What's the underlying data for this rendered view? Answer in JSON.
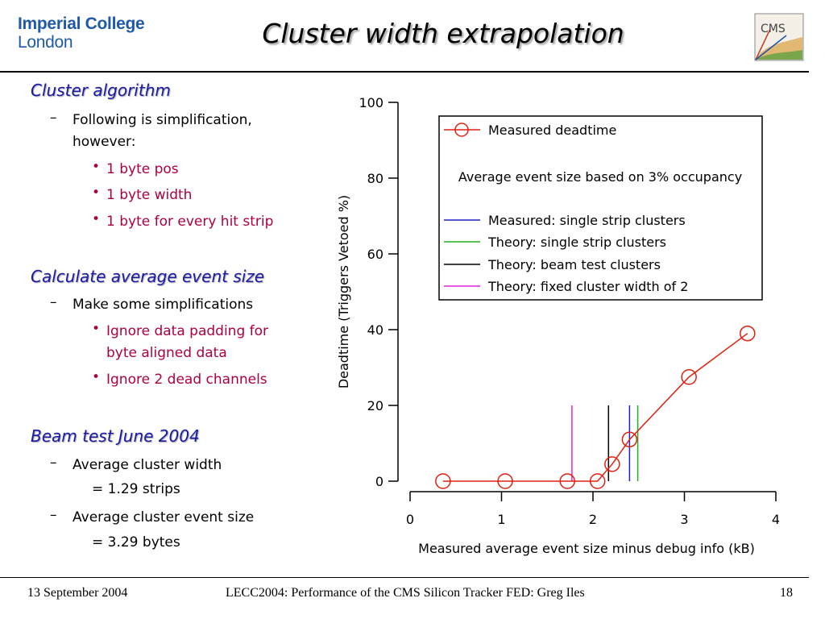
{
  "header": {
    "logo_line1": "Imperial College",
    "logo_line2": "London",
    "title": "Cluster width extrapolation",
    "cms_logo_text": "CMS"
  },
  "left": {
    "heading1": "Cluster algorithm",
    "item1": "Following is simplification,",
    "item1b": "however:",
    "bullets1": [
      "1 byte pos",
      "1 byte width",
      "1 byte for every hit strip"
    ],
    "heading2": "Calculate average event size",
    "item2": "Make some simplifications",
    "bullets2a": "Ignore data padding for",
    "bullets2a_cont": "byte aligned data",
    "bullets2b": "Ignore 2 dead channels",
    "heading3": "Beam test June 2004",
    "item3": "Average cluster width",
    "item3_value": "= 1.29 strips",
    "item4": "Average cluster event size",
    "item4_value": "= 3.29 bytes",
    "dash": "–",
    "dot": "•"
  },
  "footer": {
    "date": "13 September 2004",
    "center": "LECC2004: Performance of the CMS Silicon Tracker FED: Greg Iles",
    "page": "18"
  },
  "chart_data": {
    "type": "line",
    "xlabel": "Measured average event size minus debug info (kB)",
    "ylabel": "Deadtime (Triggers Vetoed %)",
    "xlim": [
      0,
      4
    ],
    "ylim": [
      0,
      100
    ],
    "xticks": [
      "0",
      "1",
      "2",
      "3",
      "4"
    ],
    "yticks": [
      "0",
      "20",
      "40",
      "60",
      "80",
      "100"
    ],
    "series": [
      {
        "name": "Measured deadtime",
        "color": "#e02010",
        "marker": "circle",
        "x": [
          0.36,
          1.04,
          1.72,
          2.05,
          2.21,
          2.4,
          3.05,
          3.69
        ],
        "y": [
          0.0,
          0.0,
          0.0,
          0.0,
          4.5,
          11.0,
          27.5,
          39.0
        ]
      }
    ],
    "vlines": [
      {
        "name": "Measured: single strip clusters",
        "color": "#2020c0",
        "x": 2.4,
        "y": 20
      },
      {
        "name": "Theory: single strip clusters",
        "color": "#20b020",
        "x": 2.49,
        "y": 20
      },
      {
        "name": "Theory: beam test clusters",
        "color": "#000000",
        "x": 2.17,
        "y": 20
      },
      {
        "name": "Theory: fixed cluster width of 2",
        "color": "#e020e0",
        "x": 1.77,
        "y": 20
      }
    ],
    "legend_note": "Average event size based on 3% occupancy",
    "legend_position": "top-right"
  }
}
